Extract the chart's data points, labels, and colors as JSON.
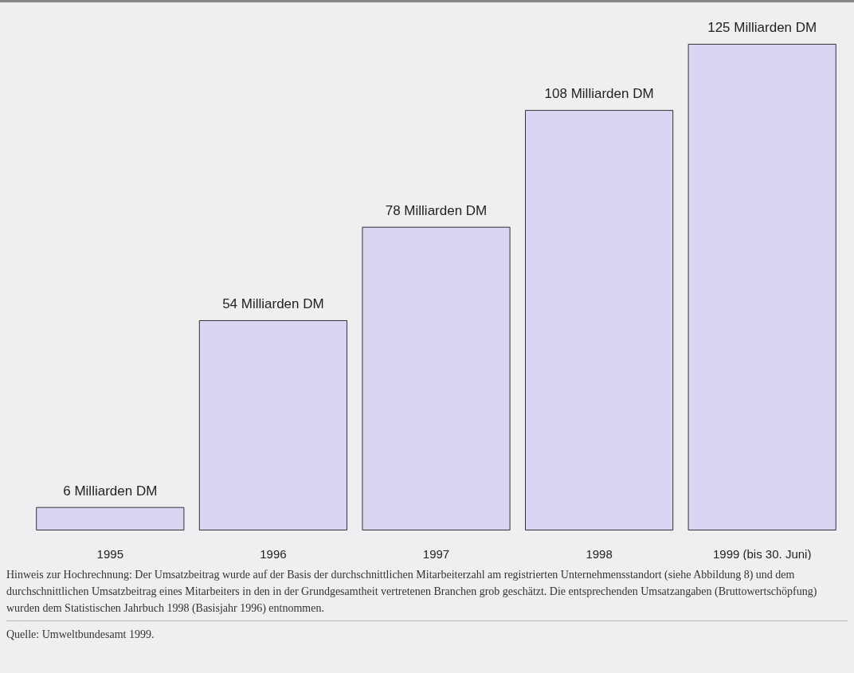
{
  "chart_data": {
    "type": "bar",
    "categories": [
      "1995",
      "1996",
      "1997",
      "1998",
      "1999 (bis 30. Juni)"
    ],
    "values": [
      6,
      54,
      78,
      108,
      125
    ],
    "value_labels": [
      "6 Milliarden DM",
      "54 Milliarden DM",
      "78 Milliarden DM",
      "108 Milliarden DM",
      "125 Milliarden DM"
    ],
    "color": "#d9d5f2",
    "tick_labels": "x",
    "annotations": [
      "Hinweis zur Hochrechnung: Der Umsatzbeitrag wurde auf der Basis der durchschnittlichen Mitarbeiterzahl am registrierten Unternehmensstandort (siehe Abbildung 8) und dem durchschnittlichen Umsatzbeitrag eines Mitarbeiters in den in der Grundgesamtheit vertretenen Branchen grob geschätzt. Die entsprechenden Umsatzangaben (Bruttowertschöpfung) wurden dem Statistischen Jahrbuch 1998 (Basisjahr 1996) entnommen.",
      "Quelle:  Umweltbundesamt 1999."
    ]
  }
}
